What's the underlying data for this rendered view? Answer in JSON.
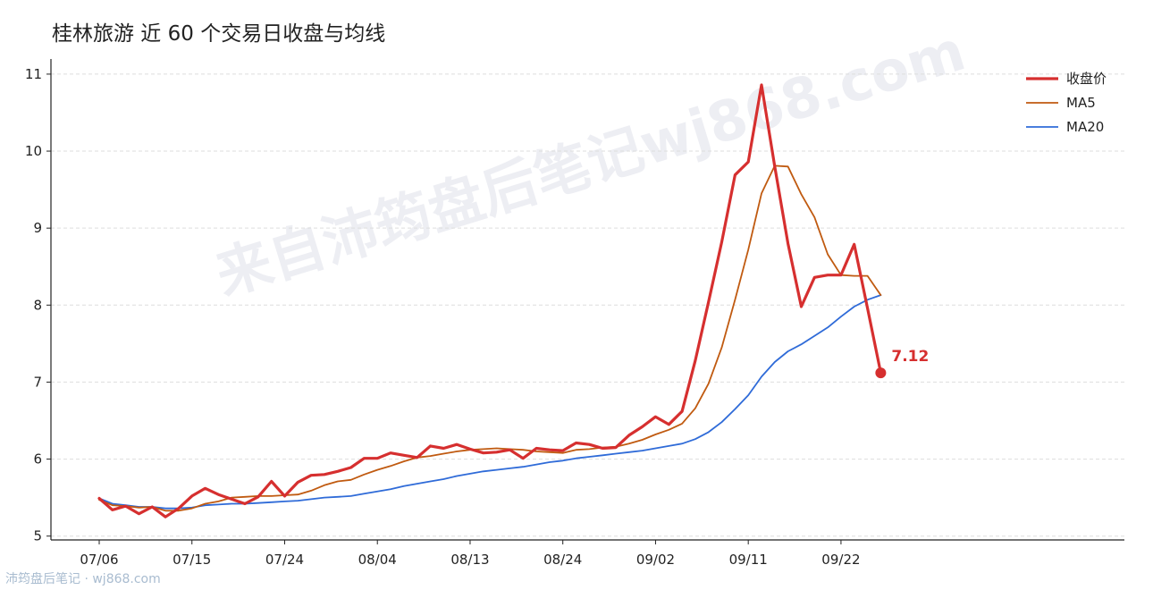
{
  "title": "桂林旅游 近 60 个交易日收盘与均线",
  "footer": "沛筠盘后笔记 · wj868.com",
  "watermark": "来自沛筠盘后笔记wj868.com",
  "colors": {
    "close": "#d62f2f",
    "ma5": "#c05a10",
    "ma20": "#2f6bd8",
    "grid": "#dddddd"
  },
  "chart_data": {
    "type": "line",
    "title": "桂林旅游 近 60 个交易日收盘与均线",
    "xlabel": "",
    "ylabel": "",
    "ylim": [
      4.95,
      11.15
    ],
    "yticks": [
      5,
      6,
      7,
      8,
      9,
      10,
      11
    ],
    "grid": true,
    "legend_position": "top-right",
    "xtick_labels": [
      {
        "i": 0,
        "label": "07/06"
      },
      {
        "i": 7,
        "label": "07/15"
      },
      {
        "i": 14,
        "label": "07/24"
      },
      {
        "i": 21,
        "label": "08/04"
      },
      {
        "i": 28,
        "label": "08/13"
      },
      {
        "i": 35,
        "label": "08/24"
      },
      {
        "i": 42,
        "label": "09/02"
      },
      {
        "i": 49,
        "label": "09/11"
      },
      {
        "i": 56,
        "label": "09/22"
      }
    ],
    "x": [
      "07/06",
      "07/07",
      "07/08",
      "07/09",
      "07/10",
      "07/13",
      "07/14",
      "07/15",
      "07/16",
      "07/17",
      "07/20",
      "07/21",
      "07/22",
      "07/23",
      "07/24",
      "07/27",
      "07/28",
      "07/29",
      "07/30",
      "07/31",
      "08/03",
      "08/04",
      "08/05",
      "08/06",
      "08/07",
      "08/10",
      "08/11",
      "08/12",
      "08/13",
      "08/14",
      "08/17",
      "08/18",
      "08/19",
      "08/20",
      "08/21",
      "08/24",
      "08/25",
      "08/26",
      "08/27",
      "08/28",
      "08/31",
      "09/01",
      "09/02",
      "09/03",
      "09/04",
      "09/07",
      "09/08",
      "09/09",
      "09/10",
      "09/11",
      "09/14",
      "09/15",
      "09/16",
      "09/17",
      "09/18",
      "09/21",
      "09/22",
      "09/23",
      "09/24",
      "09/25"
    ],
    "series": [
      {
        "name": "收盘价",
        "color": "#d62f2f",
        "values": [
          5.49,
          5.34,
          5.39,
          5.29,
          5.38,
          5.25,
          5.36,
          5.52,
          5.62,
          5.54,
          5.48,
          5.42,
          5.51,
          5.71,
          5.52,
          5.7,
          5.79,
          5.8,
          5.84,
          5.89,
          6.01,
          6.01,
          6.08,
          6.05,
          6.02,
          6.17,
          6.14,
          6.19,
          6.13,
          6.08,
          6.09,
          6.12,
          6.01,
          6.14,
          6.12,
          6.11,
          6.21,
          6.19,
          6.14,
          6.15,
          6.31,
          6.42,
          6.55,
          6.45,
          6.62,
          7.28,
          8.04,
          8.82,
          9.69,
          9.86,
          10.86,
          9.8,
          8.8,
          7.98,
          8.36,
          8.39,
          8.39,
          8.79,
          7.96,
          7.12
        ]
      },
      {
        "name": "MA5",
        "color": "#c05a10",
        "values": [
          5.47,
          5.4,
          5.39,
          5.37,
          5.38,
          5.33,
          5.33,
          5.36,
          5.42,
          5.45,
          5.5,
          5.51,
          5.52,
          5.52,
          5.53,
          5.54,
          5.59,
          5.66,
          5.71,
          5.73,
          5.8,
          5.86,
          5.91,
          5.97,
          6.02,
          6.04,
          6.07,
          6.1,
          6.12,
          6.13,
          6.14,
          6.13,
          6.12,
          6.1,
          6.09,
          6.08,
          6.12,
          6.13,
          6.15,
          6.16,
          6.2,
          6.25,
          6.32,
          6.38,
          6.46,
          6.66,
          6.98,
          7.45,
          8.07,
          8.72,
          9.45,
          9.81,
          9.8,
          9.44,
          9.14,
          8.66,
          8.39,
          8.38,
          8.38,
          8.13
        ]
      },
      {
        "name": "MA20",
        "color": "#2f6bd8",
        "values": [
          5.49,
          5.42,
          5.4,
          5.38,
          5.38,
          5.36,
          5.36,
          5.37,
          5.4,
          5.41,
          5.42,
          5.42,
          5.43,
          5.44,
          5.45,
          5.46,
          5.48,
          5.5,
          5.51,
          5.52,
          5.55,
          5.58,
          5.61,
          5.65,
          5.68,
          5.71,
          5.74,
          5.78,
          5.81,
          5.84,
          5.86,
          5.88,
          5.9,
          5.93,
          5.96,
          5.98,
          6.01,
          6.03,
          6.05,
          6.07,
          6.09,
          6.11,
          6.14,
          6.17,
          6.2,
          6.26,
          6.35,
          6.48,
          6.65,
          6.83,
          7.07,
          7.26,
          7.4,
          7.49,
          7.6,
          7.71,
          7.85,
          7.98,
          8.07,
          8.13
        ]
      }
    ],
    "end_label": "7.12"
  }
}
